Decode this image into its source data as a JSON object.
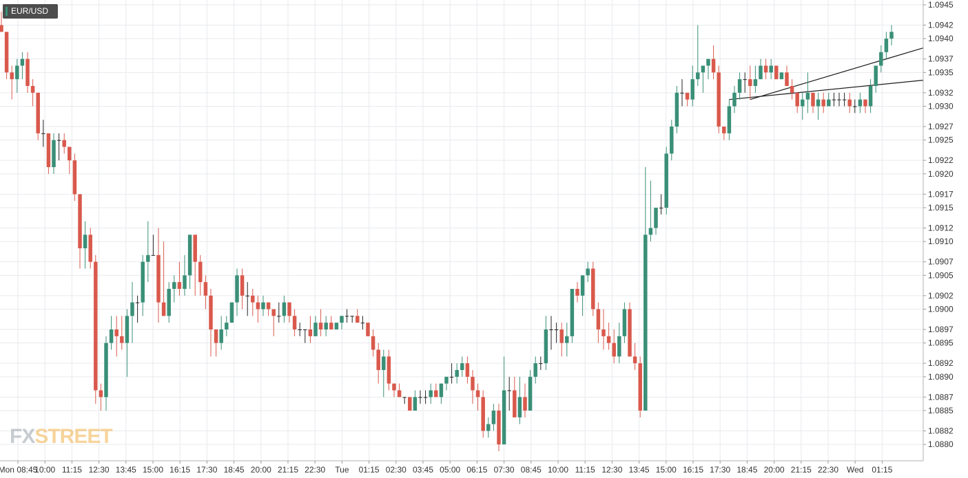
{
  "symbol": "EUR/USD",
  "watermark": {
    "prefix": "FX",
    "suffix": "STREET"
  },
  "colors": {
    "up": "#3a8f77",
    "down": "#d9594c",
    "grid": "#e8eaee",
    "trendline": "#1a1a1a"
  },
  "chart_data": {
    "type": "candlestick",
    "ylim": [
      1.0879,
      1.0945
    ],
    "y_ticks": [
      "1.0880",
      "1.0882",
      "1.0885",
      "1.0887",
      "1.0890",
      "1.0892",
      "1.0895",
      "1.0897",
      "1.0900",
      "1.0902",
      "1.0905",
      "1.0907",
      "1.0910",
      "1.0912",
      "1.0915",
      "1.0917",
      "1.0920",
      "1.0922",
      "1.0925",
      "1.0927",
      "1.0930",
      "1.0932",
      "1.0935",
      "1.0937",
      "1.0940",
      "1.0942",
      "1.0945"
    ],
    "x_ticks": [
      "Mon 08:45",
      "10:00",
      "11:15",
      "12:30",
      "13:45",
      "15:00",
      "16:15",
      "17:30",
      "18:45",
      "20:00",
      "21:15",
      "22:30",
      "Tue",
      "01:15",
      "02:30",
      "03:45",
      "05:00",
      "06:15",
      "07:30",
      "08:45",
      "10:00",
      "11:15",
      "12:30",
      "13:45",
      "15:00",
      "16:15",
      "17:30",
      "18:45",
      "20:00",
      "21:15",
      "22:30",
      "Wed",
      "01:15"
    ],
    "grid": true,
    "candles": [
      [
        1.0942,
        1.0944,
        1.0941,
        1.0941
      ],
      [
        1.0941,
        1.0941,
        1.0934,
        1.0935
      ],
      [
        1.0935,
        1.0936,
        1.0931,
        1.0934
      ],
      [
        1.0934,
        1.0937,
        1.0932,
        1.0936
      ],
      [
        1.0936,
        1.0938,
        1.0934,
        1.0937
      ],
      [
        1.0937,
        1.0938,
        1.0932,
        1.0933
      ],
      [
        1.0933,
        1.0934,
        1.093,
        1.0932
      ],
      [
        1.0932,
        1.0932,
        1.0925,
        1.0926
      ],
      [
        1.0926,
        1.0928,
        1.0924,
        1.0926
      ],
      [
        1.0926,
        1.0926,
        1.092,
        1.0921
      ],
      [
        1.0921,
        1.0926,
        1.092,
        1.0925
      ],
      [
        1.0925,
        1.0926,
        1.0922,
        1.0925
      ],
      [
        1.0925,
        1.0926,
        1.0923,
        1.0924
      ],
      [
        1.0924,
        1.0924,
        1.092,
        1.0922
      ],
      [
        1.0922,
        1.0923,
        1.0916,
        1.0917
      ],
      [
        1.0917,
        1.0917,
        1.0906,
        1.0909
      ],
      [
        1.0909,
        1.0913,
        1.0906,
        1.0911
      ],
      [
        1.0911,
        1.0912,
        1.0906,
        1.0907
      ],
      [
        1.0907,
        1.0908,
        1.0886,
        1.0888
      ],
      [
        1.0888,
        1.0889,
        1.0885,
        1.0887
      ],
      [
        1.0887,
        1.0896,
        1.0885,
        1.0895
      ],
      [
        1.0895,
        1.0899,
        1.0894,
        1.0897
      ],
      [
        1.0897,
        1.0899,
        1.0893,
        1.0896
      ],
      [
        1.0896,
        1.0899,
        1.0894,
        1.0895
      ],
      [
        1.0895,
        1.09,
        1.089,
        1.0899
      ],
      [
        1.0899,
        1.0904,
        1.0895,
        1.0901
      ],
      [
        1.0901,
        1.0902,
        1.0898,
        1.0901
      ],
      [
        1.0901,
        1.0908,
        1.0899,
        1.0907
      ],
      [
        1.0907,
        1.0913,
        1.0904,
        1.0908
      ],
      [
        1.0908,
        1.0911,
        1.0908,
        1.0908
      ],
      [
        1.0908,
        1.0912,
        1.0898,
        1.0901
      ],
      [
        1.0901,
        1.091,
        1.0899,
        1.0899
      ],
      [
        1.0899,
        1.0904,
        1.0898,
        1.0903
      ],
      [
        1.0903,
        1.0905,
        1.0901,
        1.0904
      ],
      [
        1.0904,
        1.0907,
        1.0902,
        1.0903
      ],
      [
        1.0903,
        1.0908,
        1.0902,
        1.0905
      ],
      [
        1.0905,
        1.0911,
        1.0903,
        1.0911
      ],
      [
        1.0911,
        1.0911,
        1.0902,
        1.0907
      ],
      [
        1.0907,
        1.0908,
        1.0902,
        1.0904
      ],
      [
        1.0904,
        1.0905,
        1.09,
        1.0902
      ],
      [
        1.0902,
        1.0903,
        1.0893,
        1.0897
      ],
      [
        1.0897,
        1.0897,
        1.0893,
        1.0895
      ],
      [
        1.0895,
        1.0899,
        1.0894,
        1.0897
      ],
      [
        1.0897,
        1.0899,
        1.0896,
        1.0898
      ],
      [
        1.0898,
        1.0901,
        1.0898,
        1.0901
      ],
      [
        1.0901,
        1.0906,
        1.0899,
        1.0905
      ],
      [
        1.0905,
        1.0906,
        1.09,
        1.0902
      ],
      [
        1.0902,
        1.0904,
        1.0899,
        1.0902
      ],
      [
        1.0902,
        1.0903,
        1.0899,
        1.0901
      ],
      [
        1.0901,
        1.0902,
        1.0898,
        1.09
      ],
      [
        1.09,
        1.0902,
        1.0899,
        1.0901
      ],
      [
        1.0901,
        1.0901,
        1.0899,
        1.09
      ],
      [
        1.09,
        1.09,
        1.0896,
        1.0899
      ],
      [
        1.0899,
        1.0901,
        1.0898,
        1.0899
      ],
      [
        1.0899,
        1.0902,
        1.0898,
        1.0901
      ],
      [
        1.0901,
        1.0901,
        1.0898,
        1.0899
      ],
      [
        1.0899,
        1.09,
        1.0896,
        1.0897
      ],
      [
        1.0897,
        1.0898,
        1.0896,
        1.0897
      ],
      [
        1.0897,
        1.0897,
        1.0895,
        1.0897
      ],
      [
        1.0897,
        1.0899,
        1.0895,
        1.0896
      ],
      [
        1.0896,
        1.0899,
        1.0896,
        1.0898
      ],
      [
        1.0898,
        1.09,
        1.0896,
        1.0897
      ],
      [
        1.0897,
        1.0899,
        1.0896,
        1.0898
      ],
      [
        1.0898,
        1.0899,
        1.0897,
        1.0897
      ],
      [
        1.0897,
        1.0898,
        1.0897,
        1.0898
      ],
      [
        1.0898,
        1.0899,
        1.0897,
        1.0899
      ],
      [
        1.0899,
        1.09,
        1.0898,
        1.0899
      ],
      [
        1.0899,
        1.0899,
        1.0898,
        1.0899
      ],
      [
        1.0899,
        1.09,
        1.0898,
        1.0898
      ],
      [
        1.0898,
        1.0899,
        1.0897,
        1.0898
      ],
      [
        1.0898,
        1.0898,
        1.0896,
        1.0896
      ],
      [
        1.0896,
        1.0897,
        1.0893,
        1.0894
      ],
      [
        1.0894,
        1.0895,
        1.0889,
        1.0891
      ],
      [
        1.0891,
        1.0894,
        1.0887,
        1.0893
      ],
      [
        1.0893,
        1.0894,
        1.0888,
        1.0889
      ],
      [
        1.0889,
        1.0889,
        1.0887,
        1.0888
      ],
      [
        1.0888,
        1.0889,
        1.0887,
        1.0887
      ],
      [
        1.0887,
        1.0887,
        1.0886,
        1.0887
      ],
      [
        1.0887,
        1.0887,
        1.0885,
        1.0885
      ],
      [
        1.0885,
        1.0888,
        1.0885,
        1.0887
      ],
      [
        1.0887,
        1.0888,
        1.0886,
        1.0887
      ],
      [
        1.0887,
        1.0888,
        1.0886,
        1.0887
      ],
      [
        1.0887,
        1.0889,
        1.0886,
        1.0888
      ],
      [
        1.0888,
        1.0889,
        1.0887,
        1.0887
      ],
      [
        1.0887,
        1.0889,
        1.0886,
        1.0889
      ],
      [
        1.0889,
        1.089,
        1.0888,
        1.089
      ],
      [
        1.089,
        1.0892,
        1.0889,
        1.089
      ],
      [
        1.089,
        1.0892,
        1.0889,
        1.0891
      ],
      [
        1.0891,
        1.0893,
        1.089,
        1.0892
      ],
      [
        1.0892,
        1.0893,
        1.0889,
        1.089
      ],
      [
        1.089,
        1.0891,
        1.0886,
        1.0888
      ],
      [
        1.0888,
        1.0889,
        1.0885,
        1.0887
      ],
      [
        1.0887,
        1.0888,
        1.0881,
        1.0882
      ],
      [
        1.0882,
        1.0884,
        1.0881,
        1.0883
      ],
      [
        1.0883,
        1.0886,
        1.0882,
        1.0885
      ],
      [
        1.0885,
        1.0886,
        1.0879,
        1.088
      ],
      [
        1.088,
        1.0893,
        1.088,
        1.0888
      ],
      [
        1.0888,
        1.089,
        1.0885,
        1.0888
      ],
      [
        1.0888,
        1.089,
        1.0884,
        1.0884
      ],
      [
        1.0884,
        1.089,
        1.0883,
        1.0887
      ],
      [
        1.0887,
        1.0889,
        1.0884,
        1.0885
      ],
      [
        1.0885,
        1.0891,
        1.0885,
        1.089
      ],
      [
        1.089,
        1.0893,
        1.0889,
        1.0892
      ],
      [
        1.0892,
        1.0893,
        1.0891,
        1.0892
      ],
      [
        1.0892,
        1.0899,
        1.0891,
        1.0897
      ],
      [
        1.0897,
        1.0899,
        1.0894,
        1.0897
      ],
      [
        1.0897,
        1.0898,
        1.0895,
        1.0897
      ],
      [
        1.0897,
        1.0898,
        1.0893,
        1.0895
      ],
      [
        1.0895,
        1.0898,
        1.0893,
        1.0896
      ],
      [
        1.0896,
        1.0903,
        1.0895,
        1.0903
      ],
      [
        1.0903,
        1.0904,
        1.0901,
        1.0902
      ],
      [
        1.0902,
        1.0905,
        1.0899,
        1.0905
      ],
      [
        1.0905,
        1.0907,
        1.0904,
        1.0906
      ],
      [
        1.0906,
        1.0907,
        1.0899,
        1.09
      ],
      [
        1.09,
        1.0901,
        1.0895,
        1.0897
      ],
      [
        1.0897,
        1.09,
        1.0894,
        1.0896
      ],
      [
        1.0896,
        1.0898,
        1.0894,
        1.0895
      ],
      [
        1.0895,
        1.0897,
        1.0892,
        1.0893
      ],
      [
        1.0893,
        1.0898,
        1.0892,
        1.0896
      ],
      [
        1.0896,
        1.0901,
        1.0895,
        1.09
      ],
      [
        1.09,
        1.0901,
        1.0893,
        1.0893
      ],
      [
        1.0893,
        1.0895,
        1.0891,
        1.0892
      ],
      [
        1.0892,
        1.0893,
        1.0884,
        1.0885
      ],
      [
        1.0885,
        1.0921,
        1.0885,
        1.0911
      ],
      [
        1.0911,
        1.0919,
        1.091,
        1.0912
      ],
      [
        1.0912,
        1.0915,
        1.0911,
        1.0915
      ],
      [
        1.0915,
        1.0917,
        1.0914,
        1.0915
      ],
      [
        1.0915,
        1.0924,
        1.0914,
        1.0923
      ],
      [
        1.0923,
        1.0928,
        1.0922,
        1.0927
      ],
      [
        1.0927,
        1.0933,
        1.0926,
        1.0932
      ],
      [
        1.0932,
        1.0934,
        1.093,
        1.0932
      ],
      [
        1.0932,
        1.0932,
        1.093,
        1.0931
      ],
      [
        1.0931,
        1.0936,
        1.093,
        1.0934
      ],
      [
        1.0934,
        1.0942,
        1.0933,
        1.0935
      ],
      [
        1.0935,
        1.0936,
        1.0932,
        1.0936
      ],
      [
        1.0936,
        1.0937,
        1.0934,
        1.0937
      ],
      [
        1.0937,
        1.0939,
        1.0934,
        1.0935
      ],
      [
        1.0935,
        1.0936,
        1.0926,
        1.0927
      ],
      [
        1.0927,
        1.0927,
        1.0925,
        1.0926
      ],
      [
        1.0926,
        1.0931,
        1.0925,
        1.093
      ],
      [
        1.093,
        1.0933,
        1.0929,
        1.0932
      ],
      [
        1.0932,
        1.0935,
        1.0931,
        1.0934
      ],
      [
        1.0934,
        1.0935,
        1.0932,
        1.0934
      ],
      [
        1.0934,
        1.0936,
        1.0931,
        1.0933
      ],
      [
        1.0933,
        1.0936,
        1.0932,
        1.0934
      ],
      [
        1.0934,
        1.0937,
        1.0934,
        1.0936
      ],
      [
        1.0936,
        1.0937,
        1.0934,
        1.0935
      ],
      [
        1.0935,
        1.0937,
        1.0934,
        1.0936
      ],
      [
        1.0936,
        1.0936,
        1.0934,
        1.0934
      ],
      [
        1.0934,
        1.0935,
        1.0934,
        1.0935
      ],
      [
        1.0935,
        1.0936,
        1.0933,
        1.0933
      ],
      [
        1.0933,
        1.0934,
        1.0931,
        1.0932
      ],
      [
        1.0932,
        1.0932,
        1.0929,
        1.093
      ],
      [
        1.093,
        1.0932,
        1.0928,
        1.0931
      ],
      [
        1.0931,
        1.0935,
        1.0929,
        1.0932
      ],
      [
        1.0932,
        1.0932,
        1.0929,
        1.093
      ],
      [
        1.093,
        1.0932,
        1.0928,
        1.0931
      ],
      [
        1.0931,
        1.0932,
        1.0929,
        1.093
      ],
      [
        1.093,
        1.0932,
        1.093,
        1.0931
      ],
      [
        1.0931,
        1.0932,
        1.093,
        1.0931
      ],
      [
        1.0931,
        1.0932,
        1.093,
        1.0931
      ],
      [
        1.0931,
        1.0932,
        1.093,
        1.0931
      ],
      [
        1.0931,
        1.0932,
        1.0929,
        1.093
      ],
      [
        1.093,
        1.0931,
        1.0929,
        1.093
      ],
      [
        1.093,
        1.0932,
        1.0929,
        1.0931
      ],
      [
        1.0931,
        1.0931,
        1.0929,
        1.093
      ],
      [
        1.093,
        1.0934,
        1.0929,
        1.0933
      ],
      [
        1.0933,
        1.0936,
        1.0932,
        1.0936
      ],
      [
        1.0936,
        1.0939,
        1.0935,
        1.0938
      ],
      [
        1.0938,
        1.0941,
        1.0937,
        1.094
      ],
      [
        1.094,
        1.0942,
        1.0939,
        1.0941
      ]
    ]
  }
}
